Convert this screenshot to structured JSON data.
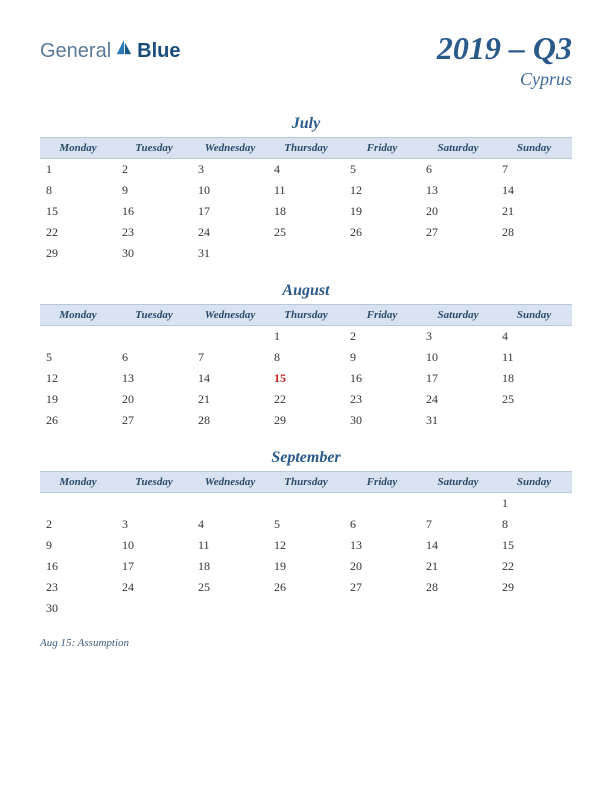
{
  "logo": {
    "part1": "General",
    "part2": "Blue"
  },
  "title": "2019 – Q3",
  "subtitle": "Cyprus",
  "weekday_labels": [
    "Monday",
    "Tuesday",
    "Wednesday",
    "Thursday",
    "Friday",
    "Saturday",
    "Sunday"
  ],
  "colors": {
    "title_color": "#2a5a8a",
    "header_bg": "#d8e2f0",
    "header_border": "#b8c8dc",
    "text_color": "#333333",
    "holiday_color": "#c02020",
    "background": "#ffffff"
  },
  "months": [
    {
      "name": "July",
      "weeks": [
        [
          {
            "d": "1"
          },
          {
            "d": "2"
          },
          {
            "d": "3"
          },
          {
            "d": "4"
          },
          {
            "d": "5"
          },
          {
            "d": "6"
          },
          {
            "d": "7"
          }
        ],
        [
          {
            "d": "8"
          },
          {
            "d": "9"
          },
          {
            "d": "10"
          },
          {
            "d": "11"
          },
          {
            "d": "12"
          },
          {
            "d": "13"
          },
          {
            "d": "14"
          }
        ],
        [
          {
            "d": "15"
          },
          {
            "d": "16"
          },
          {
            "d": "17"
          },
          {
            "d": "18"
          },
          {
            "d": "19"
          },
          {
            "d": "20"
          },
          {
            "d": "21"
          }
        ],
        [
          {
            "d": "22"
          },
          {
            "d": "23"
          },
          {
            "d": "24"
          },
          {
            "d": "25"
          },
          {
            "d": "26"
          },
          {
            "d": "27"
          },
          {
            "d": "28"
          }
        ],
        [
          {
            "d": "29"
          },
          {
            "d": "30"
          },
          {
            "d": "31"
          },
          {
            "d": ""
          },
          {
            "d": ""
          },
          {
            "d": ""
          },
          {
            "d": ""
          }
        ]
      ]
    },
    {
      "name": "August",
      "weeks": [
        [
          {
            "d": ""
          },
          {
            "d": ""
          },
          {
            "d": ""
          },
          {
            "d": "1"
          },
          {
            "d": "2"
          },
          {
            "d": "3"
          },
          {
            "d": "4"
          }
        ],
        [
          {
            "d": "5"
          },
          {
            "d": "6"
          },
          {
            "d": "7"
          },
          {
            "d": "8"
          },
          {
            "d": "9"
          },
          {
            "d": "10"
          },
          {
            "d": "11"
          }
        ],
        [
          {
            "d": "12"
          },
          {
            "d": "13"
          },
          {
            "d": "14"
          },
          {
            "d": "15",
            "h": true
          },
          {
            "d": "16"
          },
          {
            "d": "17"
          },
          {
            "d": "18"
          }
        ],
        [
          {
            "d": "19"
          },
          {
            "d": "20"
          },
          {
            "d": "21"
          },
          {
            "d": "22"
          },
          {
            "d": "23"
          },
          {
            "d": "24"
          },
          {
            "d": "25"
          }
        ],
        [
          {
            "d": "26"
          },
          {
            "d": "27"
          },
          {
            "d": "28"
          },
          {
            "d": "29"
          },
          {
            "d": "30"
          },
          {
            "d": "31"
          },
          {
            "d": ""
          }
        ]
      ]
    },
    {
      "name": "September",
      "weeks": [
        [
          {
            "d": ""
          },
          {
            "d": ""
          },
          {
            "d": ""
          },
          {
            "d": ""
          },
          {
            "d": ""
          },
          {
            "d": ""
          },
          {
            "d": "1"
          }
        ],
        [
          {
            "d": "2"
          },
          {
            "d": "3"
          },
          {
            "d": "4"
          },
          {
            "d": "5"
          },
          {
            "d": "6"
          },
          {
            "d": "7"
          },
          {
            "d": "8"
          }
        ],
        [
          {
            "d": "9"
          },
          {
            "d": "10"
          },
          {
            "d": "11"
          },
          {
            "d": "12"
          },
          {
            "d": "13"
          },
          {
            "d": "14"
          },
          {
            "d": "15"
          }
        ],
        [
          {
            "d": "16"
          },
          {
            "d": "17"
          },
          {
            "d": "18"
          },
          {
            "d": "19"
          },
          {
            "d": "20"
          },
          {
            "d": "21"
          },
          {
            "d": "22"
          }
        ],
        [
          {
            "d": "23"
          },
          {
            "d": "24"
          },
          {
            "d": "25"
          },
          {
            "d": "26"
          },
          {
            "d": "27"
          },
          {
            "d": "28"
          },
          {
            "d": "29"
          }
        ],
        [
          {
            "d": "30"
          },
          {
            "d": ""
          },
          {
            "d": ""
          },
          {
            "d": ""
          },
          {
            "d": ""
          },
          {
            "d": ""
          },
          {
            "d": ""
          }
        ]
      ]
    }
  ],
  "holidays_note": "Aug 15: Assumption"
}
